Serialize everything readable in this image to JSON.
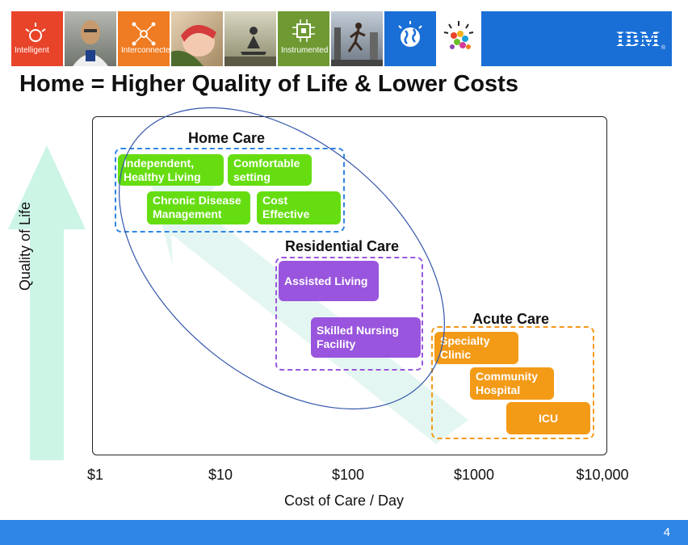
{
  "banner": {
    "tiles": [
      {
        "label": "Intelligent",
        "color": "#e8442a",
        "icon": "lightbulb-icon"
      },
      {
        "label": "",
        "color": "#8a8f86",
        "icon": "doctor-photo"
      },
      {
        "label": "Interconnected",
        "color": "#ef7b22",
        "icon": "network-icon"
      },
      {
        "label": "",
        "color": "#d9c3a3",
        "icon": "baby-photo"
      },
      {
        "label": "",
        "color": "#b7b497",
        "icon": "meditation-photo"
      },
      {
        "label": "Instrumented",
        "color": "#6f9a33",
        "icon": "chip-icon"
      },
      {
        "label": "",
        "color": "#9aa7b5",
        "icon": "runner-photo"
      },
      {
        "label": "",
        "color": "#1a6fd6",
        "icon": "globe-icon"
      },
      {
        "label": "",
        "color": "#ffffff",
        "icon": "smarter-planet-icon"
      }
    ],
    "logo": "IBM",
    "logo_mark": "®"
  },
  "slide": {
    "title": "Home = Higher Quality of Life & Lower Costs",
    "page_number": "4"
  },
  "diagram": {
    "y_axis_label": "Quality of Life",
    "x_axis_label": "Cost of Care / Day",
    "x_ticks": [
      "$1",
      "$10",
      "$100",
      "$1000",
      "$10,000"
    ],
    "groups": {
      "home": {
        "title": "Home Care",
        "color": "#2f86e6",
        "items": [
          "Independent, Healthy Living",
          "Comfortable setting",
          "Chronic Disease Management",
          "Cost Effective"
        ]
      },
      "residential": {
        "title": "Residential Care",
        "color": "#9955dd",
        "items": [
          "Assisted Living",
          "Skilled Nursing Facility"
        ]
      },
      "acute": {
        "title": "Acute Care",
        "color": "#f39a17",
        "items": [
          "Specialty Clinic",
          "Community Hospital",
          "ICU"
        ]
      }
    },
    "colors": {
      "green_box": "#66dd11",
      "ellipse": "#3355aa",
      "arrow": "#ccf5e6"
    }
  }
}
